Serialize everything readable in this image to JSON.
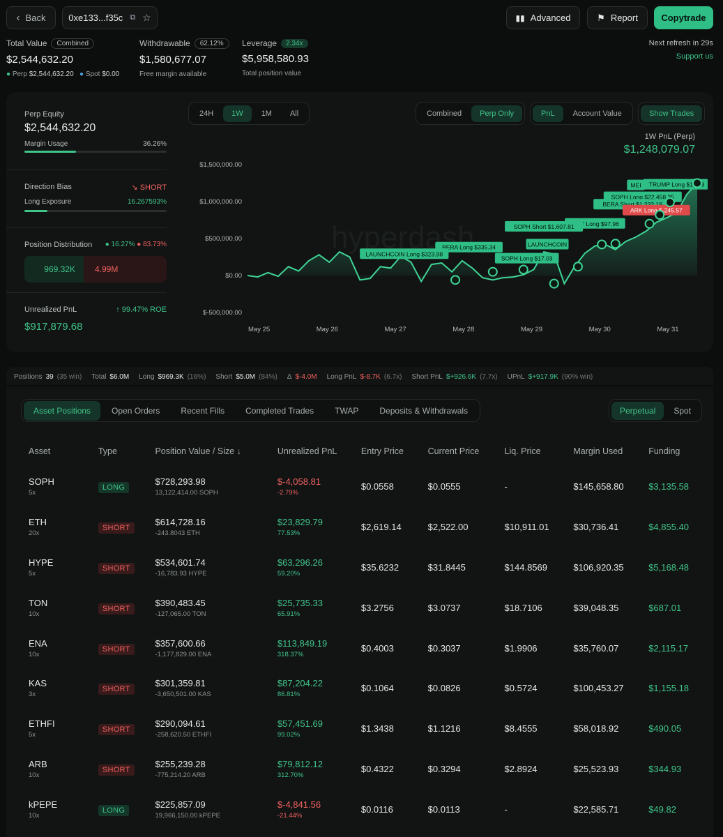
{
  "header": {
    "back_label": "Back",
    "address": "0xe133...f35c",
    "advanced_label": "Advanced",
    "report_label": "Report",
    "copytrade_label": "Copytrade"
  },
  "summary": {
    "total_value_label": "Total Value",
    "total_tag": "Combined",
    "total_value": "$2,544,632.20",
    "perp_label": "Perp",
    "perp_value": "$2,544,632.20",
    "spot_label": "Spot",
    "spot_value": "$0.00",
    "withdrawable_label": "Withdrawable",
    "withdrawable_tag": "62.12%",
    "withdrawable_value": "$1,580,677.07",
    "withdrawable_sub": "Free margin available",
    "leverage_label": "Leverage",
    "leverage_tag": "2.34x",
    "leverage_value": "$5,958,580.93",
    "leverage_sub": "Total position value",
    "refresh": "Next refresh in 29s",
    "support": "Support us"
  },
  "left_panel": {
    "perp_equity_label": "Perp Equity",
    "perp_equity": "$2,544,632.20",
    "margin_usage_label": "Margin Usage",
    "margin_usage": "36.26%",
    "margin_usage_frac": 0.3626,
    "direction_label": "Direction Bias",
    "direction_value": "SHORT",
    "long_exposure_label": "Long Exposure",
    "long_exposure": "16.267593%",
    "long_exposure_frac": 0.1627,
    "distribution_label": "Position Distribution",
    "dist_long_pct": "16.27%",
    "dist_short_pct": "83.73%",
    "dist_long_value": "969.32K",
    "dist_short_value": "4.99M",
    "upnl_label": "Unrealized PnL",
    "upnl_roe": "99.47% ROE",
    "upnl_value": "$917,879.68"
  },
  "chart_controls": {
    "ranges": [
      "24H",
      "1W",
      "1M",
      "All"
    ],
    "active_range": "1W",
    "modes": [
      "Combined",
      "Perp Only"
    ],
    "active_mode": "Perp Only",
    "metrics": [
      "PnL",
      "Account Value"
    ],
    "active_metric": "PnL",
    "show_trades": "Show Trades",
    "pnl_title": "1W PnL (Perp)",
    "pnl_value": "$1,248,079.07",
    "watermark": "hyperdash"
  },
  "chart_data": {
    "type": "line",
    "y_ticks": [
      "$1,500,000.00",
      "$1,000,000.00",
      "$500,000.00",
      "$0.00",
      "$-500,000.00"
    ],
    "x_ticks": [
      "May 25",
      "May 26",
      "May 27",
      "May 28",
      "May 29",
      "May 30",
      "May 31"
    ],
    "ylim": [
      -500000,
      1500000
    ],
    "x": [
      0,
      0.15,
      0.3,
      0.45,
      0.6,
      0.75,
      0.9,
      1.05,
      1.2,
      1.35,
      1.5,
      1.65,
      1.8,
      1.95,
      2.1,
      2.25,
      2.4,
      2.55,
      2.7,
      2.85,
      3.0,
      3.15,
      3.3,
      3.45,
      3.6,
      3.75,
      3.9,
      4.05,
      4.2,
      4.35,
      4.5,
      4.65,
      4.8,
      4.95,
      5.1,
      5.25,
      5.4,
      5.55,
      5.7,
      5.85,
      6.0,
      6.15,
      6.3,
      6.45,
      6.6
    ],
    "y": [
      0,
      -20000,
      40000,
      -10000,
      120000,
      60000,
      200000,
      280000,
      180000,
      320000,
      250000,
      -60000,
      -40000,
      120000,
      100000,
      260000,
      180000,
      -80000,
      150000,
      170000,
      50000,
      200000,
      100000,
      -30000,
      -60000,
      -30000,
      -20000,
      10000,
      80000,
      320000,
      290000,
      -110000,
      120000,
      300000,
      400000,
      420000,
      350000,
      460000,
      520000,
      600000,
      720000,
      780000,
      850000,
      1100000,
      1250000
    ],
    "trades": [
      {
        "label": "TRUMP Long $14.73",
        "x": 6.3,
        "y": 1230000,
        "color": "green"
      },
      {
        "label": "MEI",
        "x": 5.7,
        "y": 1220000,
        "color": "green"
      },
      {
        "label": "SOPH Long $22,458.35",
        "x": 5.8,
        "y": 1060000,
        "color": "green"
      },
      {
        "label": "BERA Short $1,232.18",
        "x": 5.65,
        "y": 960000,
        "color": "green"
      },
      {
        "label": "ARK Long $-245.57",
        "x": 6.0,
        "y": 880000,
        "color": "red"
      },
      {
        "label": "WCT Long $97.96",
        "x": 5.1,
        "y": 700000,
        "color": "green"
      },
      {
        "label": "SOPH Short $1,607.81",
        "x": 4.35,
        "y": 660000,
        "color": "green"
      },
      {
        "label": "LAUNCHCOIN",
        "x": 4.4,
        "y": 420000,
        "color": "green"
      },
      {
        "label": "BERA Long $335.34",
        "x": 3.25,
        "y": 380000,
        "color": "green"
      },
      {
        "label": "LAUNCHCOIN Long $323.98",
        "x": 2.3,
        "y": 290000,
        "color": "green"
      },
      {
        "label": "SOPH Long $17.03",
        "x": 4.1,
        "y": 230000,
        "color": "green"
      }
    ]
  },
  "stats": [
    {
      "label": "Positions",
      "value": "39",
      "extra": "(35 win)",
      "cls": ""
    },
    {
      "label": "Total",
      "value": "$6.0M",
      "extra": "",
      "cls": ""
    },
    {
      "label": "Long",
      "value": "$969.3K",
      "extra": "(16%)",
      "cls": ""
    },
    {
      "label": "Short",
      "value": "$5.0M",
      "extra": "(84%)",
      "cls": ""
    },
    {
      "label": "Δ",
      "value": "$-4.0M",
      "extra": "",
      "cls": "red"
    },
    {
      "label": "Long PnL",
      "value": "$-8.7K",
      "extra": "(6.7x)",
      "cls": "red"
    },
    {
      "label": "Short PnL",
      "value": "$+926.6K",
      "extra": "(7.7x)",
      "cls": "green"
    },
    {
      "label": "UPnL",
      "value": "$+917.9K",
      "extra": "(90% win)",
      "cls": "green"
    }
  ],
  "tabs": [
    "Asset Positions",
    "Open Orders",
    "Recent Fills",
    "Completed Trades",
    "TWAP",
    "Deposits & Withdrawals"
  ],
  "active_tab": "Asset Positions",
  "market_tabs": [
    "Perpetual",
    "Spot"
  ],
  "active_market": "Perpetual",
  "columns": [
    "Asset",
    "Type",
    "Position Value / Size ↓",
    "Unrealized PnL",
    "Entry Price",
    "Current Price",
    "Liq. Price",
    "Margin Used",
    "Funding"
  ],
  "rows": [
    {
      "asset": "SOPH",
      "lev": "5x",
      "type": "LONG",
      "value": "$728,293.98",
      "size": "13,122,414.00 SOPH",
      "pnl": "$-4,058.81",
      "pnl_pct": "-2.79%",
      "pos": false,
      "entry": "$0.0558",
      "current": "$0.0555",
      "liq": "-",
      "margin": "$145,658.80",
      "funding": "$3,135.58"
    },
    {
      "asset": "ETH",
      "lev": "20x",
      "type": "SHORT",
      "value": "$614,728.16",
      "size": "-243.8043 ETH",
      "pnl": "$23,829.79",
      "pnl_pct": "77.53%",
      "pos": true,
      "entry": "$2,619.14",
      "current": "$2,522.00",
      "liq": "$10,911.01",
      "margin": "$30,736.41",
      "funding": "$4,855.40"
    },
    {
      "asset": "HYPE",
      "lev": "5x",
      "type": "SHORT",
      "value": "$534,601.74",
      "size": "-16,783.93 HYPE",
      "pnl": "$63,296.26",
      "pnl_pct": "59.20%",
      "pos": true,
      "entry": "$35.6232",
      "current": "$31.8445",
      "liq": "$144.8569",
      "margin": "$106,920.35",
      "funding": "$5,168.48"
    },
    {
      "asset": "TON",
      "lev": "10x",
      "type": "SHORT",
      "value": "$390,483.45",
      "size": "-127,065.00 TON",
      "pnl": "$25,735.33",
      "pnl_pct": "65.91%",
      "pos": true,
      "entry": "$3.2756",
      "current": "$3.0737",
      "liq": "$18.7106",
      "margin": "$39,048.35",
      "funding": "$687.01"
    },
    {
      "asset": "ENA",
      "lev": "10x",
      "type": "SHORT",
      "value": "$357,600.66",
      "size": "-1,177,829.00 ENA",
      "pnl": "$113,849.19",
      "pnl_pct": "318.37%",
      "pos": true,
      "entry": "$0.4003",
      "current": "$0.3037",
      "liq": "$1.9906",
      "margin": "$35,760.07",
      "funding": "$2,115.17"
    },
    {
      "asset": "KAS",
      "lev": "3x",
      "type": "SHORT",
      "value": "$301,359.81",
      "size": "-3,650,501.00 KAS",
      "pnl": "$87,204.22",
      "pnl_pct": "86.81%",
      "pos": true,
      "entry": "$0.1064",
      "current": "$0.0826",
      "liq": "$0.5724",
      "margin": "$100,453.27",
      "funding": "$1,155.18"
    },
    {
      "asset": "ETHFI",
      "lev": "5x",
      "type": "SHORT",
      "value": "$290,094.61",
      "size": "-258,620.50 ETHFI",
      "pnl": "$57,451.69",
      "pnl_pct": "99.02%",
      "pos": true,
      "entry": "$1.3438",
      "current": "$1.1216",
      "liq": "$8.4555",
      "margin": "$58,018.92",
      "funding": "$490.05"
    },
    {
      "asset": "ARB",
      "lev": "10x",
      "type": "SHORT",
      "value": "$255,239.28",
      "size": "-775,214.20 ARB",
      "pnl": "$79,812.12",
      "pnl_pct": "312.70%",
      "pos": true,
      "entry": "$0.4322",
      "current": "$0.3294",
      "liq": "$2.8924",
      "margin": "$25,523.93",
      "funding": "$344.93"
    },
    {
      "asset": "kPEPE",
      "lev": "10x",
      "type": "LONG",
      "value": "$225,857.09",
      "size": "19,966,150.00 kPEPE",
      "pnl": "$-4,841.56",
      "pnl_pct": "-21.44%",
      "pos": false,
      "entry": "$0.0116",
      "current": "$0.0113",
      "liq": "-",
      "margin": "$22,585.71",
      "funding": "$49.82"
    }
  ]
}
